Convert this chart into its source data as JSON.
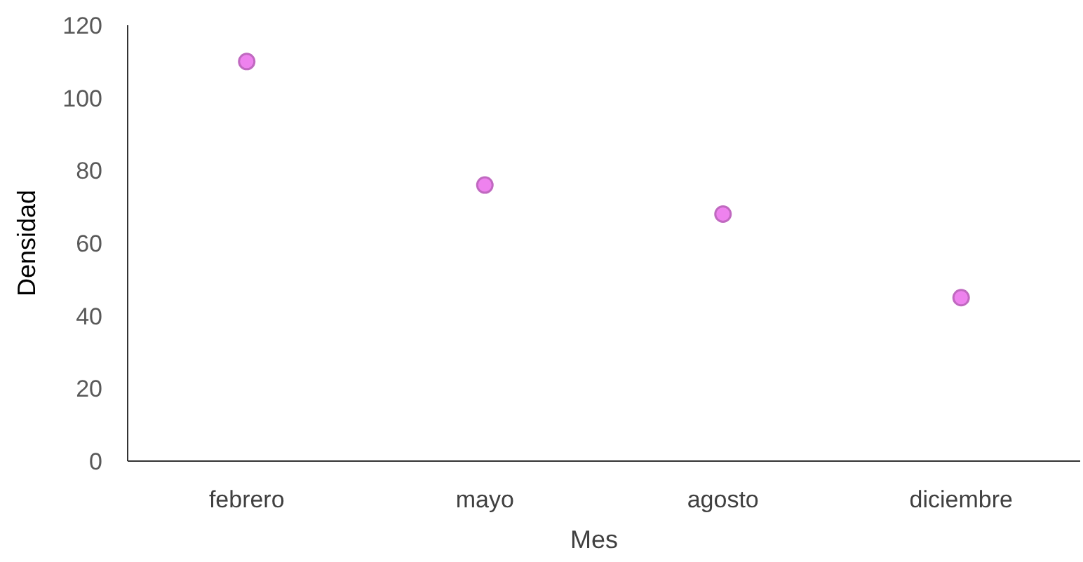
{
  "chart_data": {
    "type": "scatter",
    "xlabel": "Mes",
    "ylabel": "Densidad",
    "categories": [
      "febrero",
      "mayo",
      "agosto",
      "diciembre"
    ],
    "series": [
      {
        "color": "#ee82ee",
        "values": [
          110,
          76,
          68,
          45
        ]
      }
    ],
    "ylim": [
      0,
      120
    ],
    "yticks": [
      0,
      20,
      40,
      60,
      80,
      100,
      120
    ],
    "marker": "circle"
  }
}
